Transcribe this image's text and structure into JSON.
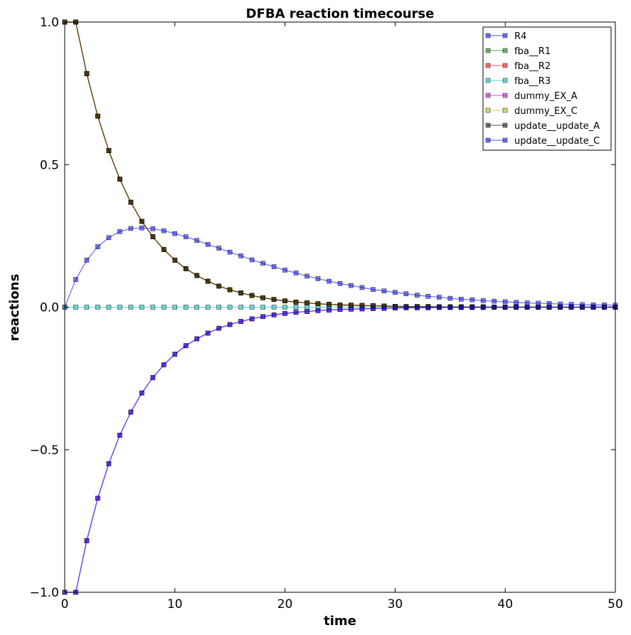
{
  "chart_data": {
    "type": "line",
    "title": "DFBA reaction timecourse",
    "xlabel": "time",
    "ylabel": "reactions",
    "xlim": [
      0,
      50
    ],
    "ylim": [
      -1.0,
      1.0
    ],
    "xticks": [
      0,
      10,
      20,
      30,
      40,
      50
    ],
    "xtick_labels": [
      "0",
      "10",
      "20",
      "30",
      "40",
      "50"
    ],
    "yticks": [
      -1.0,
      -0.5,
      0.0,
      0.5,
      1.0
    ],
    "ytick_labels": [
      "−1.0",
      "−0.5",
      "0.0",
      "0.5",
      "1.0"
    ],
    "grid": false,
    "legend_position": "top-right",
    "marker": "square",
    "x": [
      0,
      1,
      2,
      3,
      4,
      5,
      6,
      7,
      8,
      9,
      10,
      11,
      12,
      13,
      14,
      15,
      16,
      17,
      18,
      19,
      20,
      21,
      22,
      23,
      24,
      25,
      26,
      27,
      28,
      29,
      30,
      31,
      32,
      33,
      34,
      35,
      36,
      37,
      38,
      39,
      40,
      41,
      42,
      43,
      44,
      45,
      46,
      47,
      48,
      49,
      50
    ],
    "series": [
      {
        "name": "R4",
        "color": "#0000ff",
        "values": [
          0,
          0.097,
          0.165,
          0.212,
          0.244,
          0.265,
          0.276,
          0.278,
          0.275,
          0.268,
          0.258,
          0.247,
          0.234,
          0.22,
          0.207,
          0.193,
          0.18,
          0.166,
          0.154,
          0.142,
          0.13,
          0.12,
          0.109,
          0.1,
          0.091,
          0.083,
          0.076,
          0.069,
          0.062,
          0.057,
          0.052,
          0.047,
          0.042,
          0.038,
          0.035,
          0.031,
          0.028,
          0.026,
          0.023,
          0.021,
          0.019,
          0.017,
          0.015,
          0.014,
          0.013,
          0.011,
          0.01,
          0.009,
          0.008,
          0.008,
          0.007
        ]
      },
      {
        "name": "fba__R1",
        "color": "#008000",
        "values": [
          1.0,
          1.0,
          0.819,
          0.67,
          0.549,
          0.449,
          0.368,
          0.301,
          0.247,
          0.202,
          0.165,
          0.135,
          0.111,
          0.091,
          0.074,
          0.061,
          0.05,
          0.041,
          0.033,
          0.027,
          0.022,
          0.018,
          0.015,
          0.012,
          0.01,
          0.008,
          0.007,
          0.006,
          0.005,
          0.004,
          0.003,
          0.002,
          0.002,
          0.002,
          0.001,
          0.001,
          0.001,
          0.001,
          0.001,
          0,
          0,
          0,
          0,
          0,
          0,
          0,
          0,
          0,
          0,
          0,
          0
        ]
      },
      {
        "name": "fba__R2",
        "color": "#ff0000",
        "values": [
          1.0,
          1.0,
          0.819,
          0.67,
          0.549,
          0.449,
          0.368,
          0.301,
          0.247,
          0.202,
          0.165,
          0.135,
          0.111,
          0.091,
          0.074,
          0.061,
          0.05,
          0.041,
          0.033,
          0.027,
          0.022,
          0.018,
          0.015,
          0.012,
          0.01,
          0.008,
          0.007,
          0.006,
          0.005,
          0.004,
          0.003,
          0.002,
          0.002,
          0.002,
          0.001,
          0.001,
          0.001,
          0.001,
          0.001,
          0,
          0,
          0,
          0,
          0,
          0,
          0,
          0,
          0,
          0,
          0,
          0
        ]
      },
      {
        "name": "fba__R3",
        "color": "#00bfbf",
        "values": [
          0,
          0,
          0,
          0,
          0,
          0,
          0,
          0,
          0,
          0,
          0,
          0,
          0,
          0,
          0,
          0,
          0,
          0,
          0,
          0,
          0,
          0,
          0,
          0,
          0,
          0,
          0,
          0,
          0,
          0,
          0,
          0,
          0,
          0,
          0,
          0,
          0,
          0,
          0,
          0,
          0,
          0,
          0,
          0,
          0,
          0,
          0,
          0,
          0,
          0,
          0
        ]
      },
      {
        "name": "dummy_EX_A",
        "color": "#bf00bf",
        "values": [
          -1.0,
          -1.0,
          -0.819,
          -0.67,
          -0.549,
          -0.449,
          -0.368,
          -0.301,
          -0.247,
          -0.202,
          -0.165,
          -0.135,
          -0.111,
          -0.091,
          -0.074,
          -0.061,
          -0.05,
          -0.041,
          -0.033,
          -0.027,
          -0.022,
          -0.018,
          -0.015,
          -0.012,
          -0.01,
          -0.008,
          -0.007,
          -0.006,
          -0.005,
          -0.004,
          -0.003,
          -0.002,
          -0.002,
          -0.002,
          -0.001,
          -0.001,
          -0.001,
          -0.001,
          -0.001,
          0,
          0,
          0,
          0,
          0,
          0,
          0,
          0,
          0,
          0,
          0,
          0
        ]
      },
      {
        "name": "dummy_EX_C",
        "color": "#bfbf00",
        "values": [
          1.0,
          1.0,
          0.819,
          0.67,
          0.549,
          0.449,
          0.368,
          0.301,
          0.247,
          0.202,
          0.165,
          0.135,
          0.111,
          0.091,
          0.074,
          0.061,
          0.05,
          0.041,
          0.033,
          0.027,
          0.022,
          0.018,
          0.015,
          0.012,
          0.01,
          0.008,
          0.007,
          0.006,
          0.005,
          0.004,
          0.003,
          0.002,
          0.002,
          0.002,
          0.001,
          0.001,
          0.001,
          0.001,
          0.001,
          0,
          0,
          0,
          0,
          0,
          0,
          0,
          0,
          0,
          0,
          0,
          0
        ]
      },
      {
        "name": "update__update_A",
        "color": "#000000",
        "values": [
          1.0,
          1.0,
          0.819,
          0.67,
          0.549,
          0.449,
          0.368,
          0.301,
          0.247,
          0.202,
          0.165,
          0.135,
          0.111,
          0.091,
          0.074,
          0.061,
          0.05,
          0.041,
          0.033,
          0.027,
          0.022,
          0.018,
          0.015,
          0.012,
          0.01,
          0.008,
          0.007,
          0.006,
          0.005,
          0.004,
          0.003,
          0.002,
          0.002,
          0.002,
          0.001,
          0.001,
          0.001,
          0.001,
          0.001,
          0,
          0,
          0,
          0,
          0,
          0,
          0,
          0,
          0,
          0,
          0,
          0
        ]
      },
      {
        "name": "update__update_C",
        "color": "#0000ff",
        "values": [
          -1.0,
          -1.0,
          -0.819,
          -0.67,
          -0.549,
          -0.449,
          -0.368,
          -0.301,
          -0.247,
          -0.202,
          -0.165,
          -0.135,
          -0.111,
          -0.091,
          -0.074,
          -0.061,
          -0.05,
          -0.041,
          -0.033,
          -0.027,
          -0.022,
          -0.018,
          -0.015,
          -0.012,
          -0.01,
          -0.008,
          -0.007,
          -0.006,
          -0.005,
          -0.004,
          -0.003,
          -0.002,
          -0.002,
          -0.002,
          -0.001,
          -0.001,
          -0.001,
          -0.001,
          -0.001,
          0,
          0,
          0,
          0,
          0,
          0,
          0,
          0,
          0,
          0,
          0,
          0
        ]
      }
    ]
  }
}
